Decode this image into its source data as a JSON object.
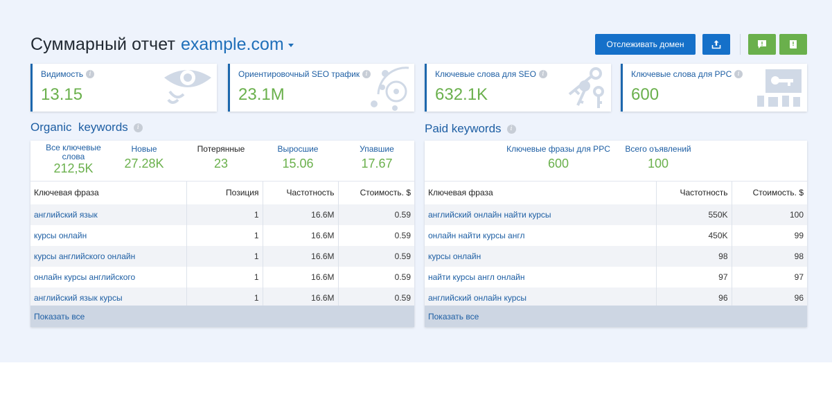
{
  "header": {
    "title": "Суммарный отчет",
    "domain": "example.com",
    "track_label": "Отслеживать домен"
  },
  "colors": {
    "accent_blue": "#1570c9",
    "value_green": "#6ab04c",
    "background": "#eef3fc",
    "card_border": "#1d67ad"
  },
  "icons": [
    "export-icon",
    "alert-icon",
    "book-icon",
    "info-icon",
    "eye-icon",
    "traffic-icon",
    "keys-icon",
    "ppc-icon",
    "chevron-down-icon"
  ],
  "metrics": [
    {
      "label": "Видимость",
      "value": "13.15"
    },
    {
      "label": "Ориентировочный SEO трафик",
      "value": "23.1M"
    },
    {
      "label": "Ключевые слова для SEO",
      "value": "632.1K"
    },
    {
      "label": "Ключевые слова для PPC",
      "value": "600"
    }
  ],
  "organic": {
    "title": "Organic  keywords",
    "summary": [
      {
        "label": "Все ключевые слова",
        "value": "212,5K"
      },
      {
        "label": "Новые",
        "value": "27.28K"
      },
      {
        "label": "Потерянные",
        "value": "23"
      },
      {
        "label": "Выросшие",
        "value": "15.06"
      },
      {
        "label": "Упавшие",
        "value": "17.67"
      }
    ],
    "columns": [
      "Ключевая фраза",
      "Позиция",
      "Частотность",
      "Стоимость. $"
    ],
    "rows": [
      [
        "английский язык",
        "1",
        "16.6M",
        "0.59"
      ],
      [
        "курсы онлайн",
        "1",
        "16.6M",
        "0.59"
      ],
      [
        "курсы английского онлайн",
        "1",
        "16.6M",
        "0.59"
      ],
      [
        "онлайн курсы английского",
        "1",
        "16.6M",
        "0.59"
      ],
      [
        "английский язык курсы",
        "1",
        "16.6M",
        "0.59"
      ]
    ],
    "show_all": "Показать все"
  },
  "paid": {
    "title": "Paid keywords",
    "summary": [
      {
        "label": "Ключевые фразы для PPC",
        "value": "600"
      },
      {
        "label": "Всего оъявлений",
        "value": "100"
      }
    ],
    "columns": [
      "Ключевая фраза",
      "Частотность",
      "Стоимость. $"
    ],
    "rows": [
      [
        "английский онлайн найти курсы",
        "550K",
        "100"
      ],
      [
        "онлайн найти курсы англ",
        "450K",
        "99"
      ],
      [
        "курсы онлайн",
        "98",
        "98"
      ],
      [
        "найти курсы англ онлайн",
        "97",
        "97"
      ],
      [
        "английский онлайн курсы",
        "96",
        "96"
      ]
    ],
    "show_all": "Показать все"
  }
}
